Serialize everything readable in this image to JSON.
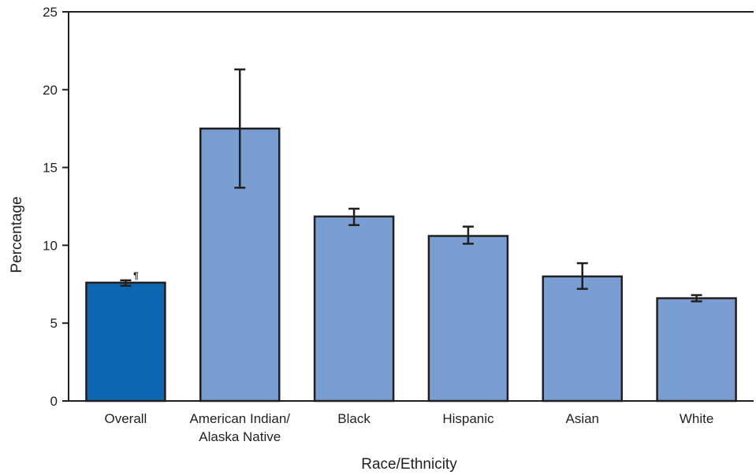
{
  "chart_data": {
    "type": "bar",
    "xlabel": "Race/Ethnicity",
    "ylabel": "Percentage",
    "ylim": [
      0,
      25
    ],
    "yticks": [
      "0",
      "5",
      "10",
      "15",
      "20",
      "25"
    ],
    "categories": [
      {
        "label_lines": [
          "Overall"
        ],
        "value": 7.6,
        "ci_low": 7.4,
        "ci_high": 7.75,
        "color": "#0f66b0",
        "note": "¶"
      },
      {
        "label_lines": [
          "American Indian/",
          "Alaska Native"
        ],
        "value": 17.5,
        "ci_low": 13.7,
        "ci_high": 21.3,
        "color": "#7a9dd2",
        "note": ""
      },
      {
        "label_lines": [
          "Black"
        ],
        "value": 11.85,
        "ci_low": 11.3,
        "ci_high": 12.35,
        "color": "#7a9dd2",
        "note": ""
      },
      {
        "label_lines": [
          "Hispanic"
        ],
        "value": 10.6,
        "ci_low": 10.1,
        "ci_high": 11.2,
        "color": "#7a9dd2",
        "note": ""
      },
      {
        "label_lines": [
          "Asian"
        ],
        "value": 8.0,
        "ci_low": 7.2,
        "ci_high": 8.85,
        "color": "#7a9dd2",
        "note": ""
      },
      {
        "label_lines": [
          "White"
        ],
        "value": 6.6,
        "ci_low": 6.4,
        "ci_high": 6.8,
        "color": "#7a9dd2",
        "note": ""
      }
    ],
    "grid": false,
    "legend": "none"
  }
}
